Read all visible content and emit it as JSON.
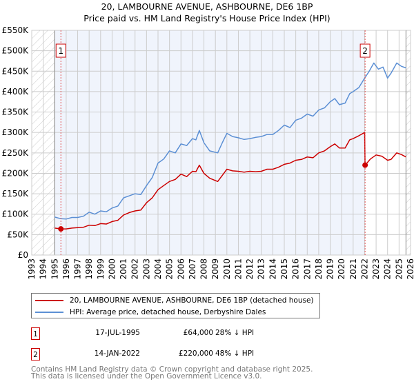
{
  "title_line1": "20, LAMBOURNE AVENUE, ASHBOURNE, DE6 1BP",
  "title_line2": "Price paid vs. HM Land Registry's House Price Index (HPI)",
  "chart_data": {
    "type": "line",
    "title": "20, LAMBOURNE AVENUE, ASHBOURNE, DE6 1BP — Price paid vs. HM Land Registry's House Price Index (HPI)",
    "xlim": [
      1993,
      2026
    ],
    "ylim": [
      0,
      550000
    ],
    "x_ticks": [
      1993,
      1994,
      1995,
      1996,
      1997,
      1998,
      1999,
      2000,
      2001,
      2002,
      2003,
      2004,
      2005,
      2006,
      2007,
      2008,
      2009,
      2010,
      2011,
      2012,
      2013,
      2014,
      2015,
      2016,
      2017,
      2018,
      2019,
      2020,
      2021,
      2022,
      2023,
      2024,
      2025,
      2026
    ],
    "y_ticks": [
      0,
      50000,
      100000,
      150000,
      200000,
      250000,
      300000,
      350000,
      400000,
      450000,
      500000,
      550000
    ],
    "y_tick_labels": [
      "£0",
      "£50K",
      "£100K",
      "£150K",
      "£200K",
      "£250K",
      "£300K",
      "£350K",
      "£400K",
      "£450K",
      "£500K",
      "£550K"
    ],
    "grid": true,
    "colors": {
      "property": "#cc0000",
      "hpi": "#5b8fd4",
      "shade": "#f0f4fc"
    },
    "series": [
      {
        "name": "20, LAMBOURNE AVENUE, ASHBOURNE, DE6 1BP (detached house)",
        "color": "#cc0000",
        "x": [
          1995.0,
          1995.54,
          1996,
          1996.5,
          1997,
          1997.5,
          1998,
          1998.5,
          1999,
          1999.5,
          2000,
          2000.5,
          2001,
          2001.5,
          2002,
          2002.5,
          2003,
          2003.5,
          2004,
          2004.5,
          2005,
          2005.5,
          2006,
          2006.5,
          2007,
          2007.3,
          2007.6,
          2008,
          2008.5,
          2009.2,
          2009.6,
          2010,
          2010.5,
          2011,
          2011.5,
          2012,
          2012.5,
          2013,
          2013.5,
          2014,
          2014.5,
          2015,
          2015.5,
          2016,
          2016.5,
          2017,
          2017.5,
          2018,
          2018.5,
          2019,
          2019.4,
          2019.8,
          2020.3,
          2020.7,
          2021,
          2021.5,
          2022.0,
          2022.04,
          2022.5,
          2023,
          2023.5,
          2024,
          2024.3,
          2024.8,
          2025.2,
          2025.6
        ],
        "y": [
          66000,
          64000,
          64000,
          66000,
          67000,
          68000,
          73000,
          72000,
          77000,
          76000,
          82000,
          85000,
          98000,
          104000,
          108000,
          110000,
          128000,
          140000,
          160000,
          170000,
          180000,
          185000,
          198000,
          192000,
          205000,
          204000,
          220000,
          200000,
          188000,
          180000,
          195000,
          210000,
          206000,
          205000,
          203000,
          205000,
          204000,
          205000,
          210000,
          210000,
          215000,
          222000,
          225000,
          232000,
          234000,
          240000,
          238000,
          250000,
          255000,
          265000,
          272000,
          262000,
          262000,
          282000,
          285000,
          292000,
          300000,
          220000,
          235000,
          245000,
          242000,
          232000,
          234000,
          250000,
          246000,
          240000
        ]
      },
      {
        "name": "HPI: Average price, detached house, Derbyshire Dales",
        "color": "#5b8fd4",
        "x": [
          1995.0,
          1995.5,
          1996,
          1996.5,
          1997,
          1997.5,
          1998,
          1998.5,
          1999,
          1999.5,
          2000,
          2000.5,
          2001,
          2001.5,
          2002,
          2002.5,
          2003,
          2003.5,
          2004,
          2004.5,
          2005,
          2005.5,
          2006,
          2006.5,
          2007,
          2007.3,
          2007.6,
          2008,
          2008.5,
          2009.2,
          2009.6,
          2010,
          2010.5,
          2011,
          2011.5,
          2012,
          2012.5,
          2013,
          2013.5,
          2014,
          2014.5,
          2015,
          2015.5,
          2016,
          2016.5,
          2017,
          2017.5,
          2018,
          2018.5,
          2019,
          2019.4,
          2019.8,
          2020.3,
          2020.7,
          2021,
          2021.5,
          2022,
          2022.4,
          2022.8,
          2023.2,
          2023.6,
          2024,
          2024.3,
          2024.8,
          2025.2,
          2025.6
        ],
        "y": [
          93000,
          89000,
          88000,
          92000,
          92000,
          95000,
          105000,
          100000,
          108000,
          106000,
          115000,
          120000,
          140000,
          145000,
          150000,
          148000,
          170000,
          190000,
          225000,
          235000,
          255000,
          250000,
          272000,
          268000,
          285000,
          282000,
          305000,
          275000,
          255000,
          250000,
          275000,
          298000,
          290000,
          287000,
          283000,
          285000,
          288000,
          290000,
          295000,
          295000,
          305000,
          318000,
          312000,
          330000,
          335000,
          345000,
          340000,
          355000,
          360000,
          375000,
          383000,
          368000,
          372000,
          395000,
          400000,
          410000,
          433000,
          450000,
          470000,
          455000,
          460000,
          433000,
          445000,
          470000,
          462000,
          458000
        ]
      }
    ],
    "annotations": [
      {
        "label": "1",
        "x": 1995.54,
        "y": 64000
      },
      {
        "label": "2",
        "x": 2022.04,
        "y": 220000
      }
    ]
  },
  "legend": [
    {
      "label": "20, LAMBOURNE AVENUE, ASHBOURNE, DE6 1BP (detached house)",
      "color": "#cc0000"
    },
    {
      "label": "HPI: Average price, detached house, Derbyshire Dales",
      "color": "#5b8fd4"
    }
  ],
  "transactions": [
    {
      "num": "1",
      "date": "17-JUL-1995",
      "price": "£64,000",
      "hpi": "28% ↓ HPI"
    },
    {
      "num": "2",
      "date": "14-JAN-2022",
      "price": "£220,000",
      "hpi": "48% ↓ HPI"
    }
  ],
  "footer_line1": "Contains HM Land Registry data © Crown copyright and database right 2025.",
  "footer_line2": "This data is licensed under the Open Government Licence v3.0."
}
